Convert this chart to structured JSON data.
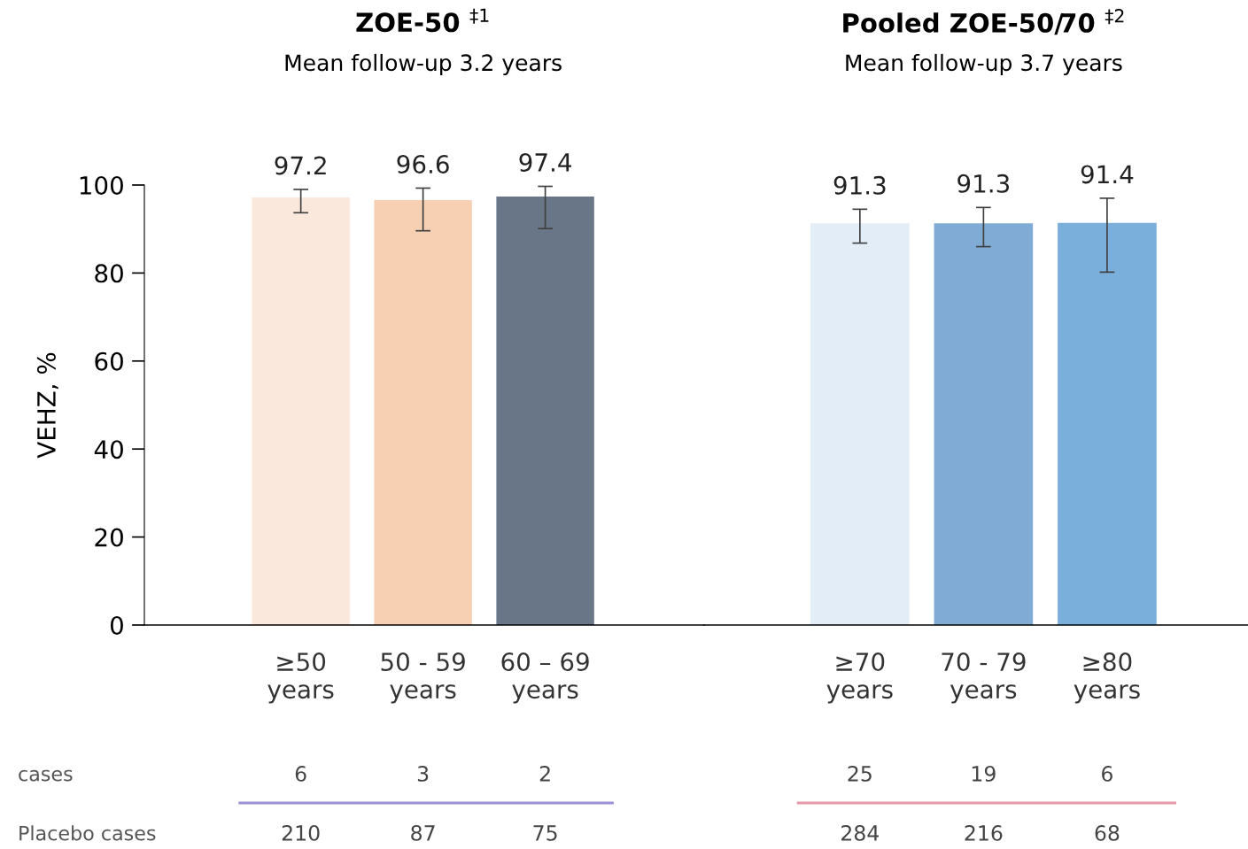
{
  "chart_data": [
    {
      "type": "bar",
      "title": "ZOE-50 $^{‡1}$",
      "subtitle": "Mean follow-up 3.2 years",
      "ylabel": "VEHZ, %",
      "categories": [
        "≥50\nyears",
        "50 - 59\nyears",
        "60 – 69\nyears"
      ],
      "values": [
        97.2,
        96.6,
        97.4
      ],
      "colors": [
        "#fbe8dd",
        "#f7cfb2",
        "#687687"
      ],
      "errors": [
        [
          93.7,
          99.0
        ],
        [
          89.6,
          99.3
        ],
        [
          90.1,
          99.7
        ]
      ],
      "ylim": [
        0,
        100
      ],
      "yticks": [
        0,
        20,
        40,
        60,
        80,
        100
      ],
      "data_labels": true,
      "grid": false,
      "annotations": [
        "cases",
        "Placebo cases",
        "6",
        "3",
        "2",
        "210",
        "87",
        "75"
      ]
    },
    {
      "type": "bar",
      "title": "Pooled ZOE-50/70 $^{‡2}$",
      "subtitle": "Mean follow-up 3.7 years",
      "categories": [
        "≥70\nyears",
        "70 - 79\nyears",
        "≥80\nyears"
      ],
      "values": [
        91.3,
        91.3,
        91.4
      ],
      "colors": [
        "#e3edf7",
        "#80abd4",
        "#7aaedb"
      ],
      "errors": [
        [
          86.8,
          94.5
        ],
        [
          86.0,
          94.9
        ],
        [
          80.2,
          97.0
        ]
      ],
      "ylim": [
        0,
        100
      ],
      "tick_labels": "x",
      "data_labels": true,
      "grid": false,
      "annotations": [
        "25",
        "19",
        "6",
        "284",
        "216",
        "68"
      ]
    }
  ]
}
